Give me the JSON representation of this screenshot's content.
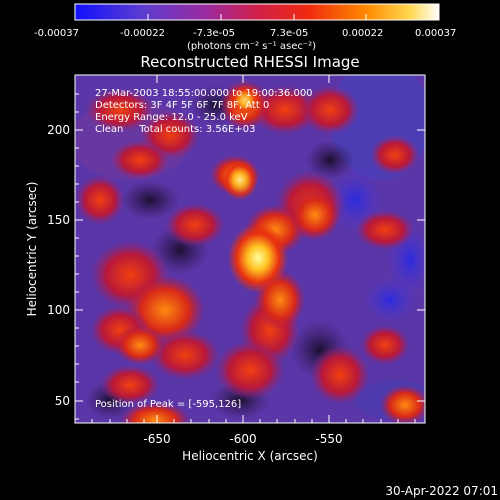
{
  "colorbar": {
    "tick_labels": [
      "-0.00037",
      "-0.00022",
      "-7.3e-05",
      "7.3e-05",
      "0.00022",
      "0.00037"
    ],
    "units": "(photons cm⁻² s⁻¹ asec⁻²)",
    "colors": [
      "#1010ff",
      "#6a3cc8",
      "#b0208a",
      "#e81e1e",
      "#ff7a00",
      "#ffd040",
      "#ffffff"
    ]
  },
  "plot": {
    "title": "Reconstructed RHESSI Image",
    "xlabel": "Heliocentric X (arcsec)",
    "ylabel": "Heliocentric Y (arcsec)",
    "x_ticks": [
      "-650",
      "-600",
      "-550"
    ],
    "y_ticks": [
      "200",
      "150",
      "100",
      "50"
    ],
    "overlay_lines": [
      "27-Mar-2003 18:55:00.000 to 19:00:36.000",
      "Detectors: 3F 4F 5F 6F 7F 8F, Att 0",
      "Energy Range: 12.0 - 25.0 keV",
      "Clean     Total counts: 3.56E+03"
    ],
    "peak_text": "Position of Peak = [-595,126]"
  },
  "footer": {
    "timestamp": "30-Apr-2022 07:01"
  }
}
